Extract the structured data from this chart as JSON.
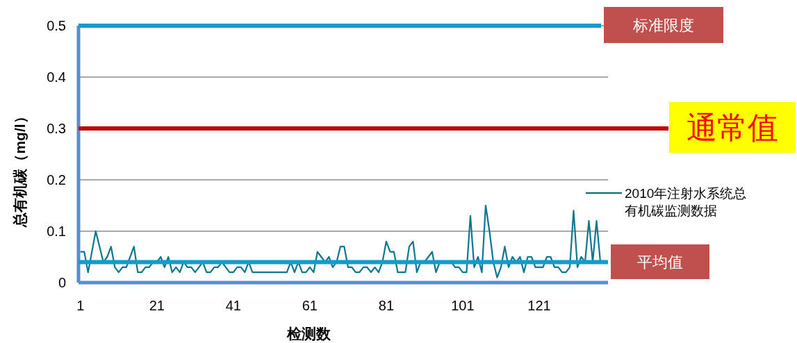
{
  "chart_data": {
    "type": "line",
    "xlabel": "检测数",
    "ylabel": "总有机碳（mg/l）",
    "x": [
      1,
      2,
      3,
      4,
      5,
      6,
      7,
      8,
      9,
      10,
      11,
      12,
      13,
      14,
      15,
      16,
      17,
      18,
      19,
      20,
      21,
      22,
      23,
      24,
      25,
      26,
      27,
      28,
      29,
      30,
      31,
      32,
      33,
      34,
      35,
      36,
      37,
      38,
      39,
      40,
      41,
      42,
      43,
      44,
      45,
      46,
      47,
      48,
      49,
      50,
      51,
      52,
      53,
      54,
      55,
      56,
      57,
      58,
      59,
      60,
      61,
      62,
      63,
      64,
      65,
      66,
      67,
      68,
      69,
      70,
      71,
      72,
      73,
      74,
      75,
      76,
      77,
      78,
      79,
      80,
      81,
      82,
      83,
      84,
      85,
      86,
      87,
      88,
      89,
      90,
      91,
      92,
      93,
      94,
      95,
      96,
      97,
      98,
      99,
      100,
      101,
      102,
      103,
      104,
      105,
      106,
      107,
      108,
      109,
      110,
      111,
      112,
      113,
      114,
      115,
      116,
      117,
      118,
      119,
      120,
      121,
      122,
      123,
      124,
      125,
      126,
      127,
      128,
      129,
      130,
      131,
      132,
      133,
      134,
      135,
      136,
      137
    ],
    "series": [
      {
        "name": "2010年注射水系统总有机碳监测数据",
        "color": "#0f7690",
        "values": [
          0.06,
          0.06,
          0.02,
          0.06,
          0.1,
          0.07,
          0.04,
          0.05,
          0.07,
          0.03,
          0.02,
          0.03,
          0.03,
          0.05,
          0.07,
          0.02,
          0.02,
          0.03,
          0.03,
          0.04,
          0.04,
          0.05,
          0.03,
          0.05,
          0.02,
          0.03,
          0.02,
          0.04,
          0.03,
          0.03,
          0.02,
          0.03,
          0.04,
          0.02,
          0.02,
          0.03,
          0.03,
          0.04,
          0.03,
          0.02,
          0.02,
          0.03,
          0.03,
          0.02,
          0.04,
          0.02,
          0.02,
          0.02,
          0.02,
          0.02,
          0.02,
          0.02,
          0.02,
          0.02,
          0.02,
          0.04,
          0.02,
          0.04,
          0.02,
          0.02,
          0.03,
          0.02,
          0.06,
          0.05,
          0.04,
          0.05,
          0.03,
          0.04,
          0.07,
          0.07,
          0.03,
          0.03,
          0.02,
          0.02,
          0.03,
          0.03,
          0.02,
          0.03,
          0.02,
          0.04,
          0.08,
          0.06,
          0.06,
          0.02,
          0.02,
          0.02,
          0.07,
          0.08,
          0.02,
          0.04,
          0.04,
          0.05,
          0.06,
          0.02,
          0.04,
          0.04,
          0.04,
          0.04,
          0.03,
          0.03,
          0.02,
          0.02,
          0.13,
          0.03,
          0.05,
          0.02,
          0.15,
          0.1,
          0.04,
          0.01,
          0.03,
          0.07,
          0.03,
          0.05,
          0.04,
          0.05,
          0.02,
          0.05,
          0.05,
          0.03,
          0.03,
          0.03,
          0.05,
          0.05,
          0.03,
          0.03,
          0.02,
          0.02,
          0.03,
          0.14,
          0.03,
          0.05,
          0.04,
          0.12,
          0.04,
          0.12,
          0.04
        ]
      }
    ],
    "xlim": [
      0.5,
      139
    ],
    "xticks": [
      1,
      21,
      41,
      61,
      81,
      101,
      121
    ],
    "ylim": [
      0,
      0.5
    ],
    "yticks": [
      0,
      0.1,
      0.2,
      0.3,
      0.4,
      0.5
    ],
    "grid": "y",
    "legend": "right",
    "ref_lines": [
      {
        "axis": "y",
        "value": 0.5,
        "label": "标准限度",
        "color": "#139bc9"
      },
      {
        "axis": "y",
        "value": 0.3,
        "label": "通常值",
        "color": "#c00000"
      },
      {
        "axis": "y",
        "value": 0.04,
        "label": "平均值",
        "color": "#139bc9"
      }
    ]
  }
}
